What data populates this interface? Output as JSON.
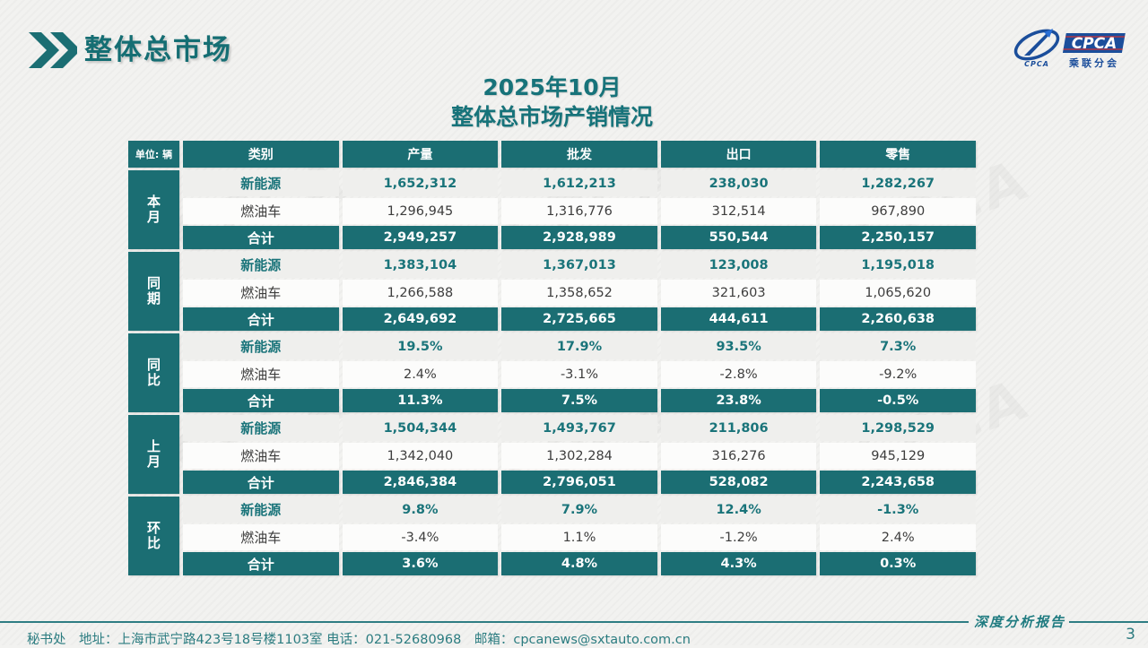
{
  "slide": {
    "section_title": "整体总市场",
    "title_line1": "2025年10月",
    "title_line2": "整体总市场产销情况"
  },
  "logo": {
    "main": "CPCA",
    "sub": "乘联分会",
    "oval_caption": "CPCA"
  },
  "watermark_text": "CPCA",
  "table": {
    "unit_label": "单位: 辆",
    "columns": [
      "类别",
      "产量",
      "批发",
      "出口",
      "零售"
    ],
    "groups": [
      {
        "label": "本月",
        "rows": [
          {
            "category": "新能源",
            "style": "nev",
            "values": [
              "1,652,312",
              "1,612,213",
              "238,030",
              "1,282,267"
            ]
          },
          {
            "category": "燃油车",
            "style": "fuel",
            "values": [
              "1,296,945",
              "1,316,776",
              "312,514",
              "967,890"
            ]
          },
          {
            "category": "合计",
            "style": "total",
            "values": [
              "2,949,257",
              "2,928,989",
              "550,544",
              "2,250,157"
            ]
          }
        ]
      },
      {
        "label": "同期",
        "rows": [
          {
            "category": "新能源",
            "style": "nev",
            "values": [
              "1,383,104",
              "1,367,013",
              "123,008",
              "1,195,018"
            ]
          },
          {
            "category": "燃油车",
            "style": "fuel",
            "values": [
              "1,266,588",
              "1,358,652",
              "321,603",
              "1,065,620"
            ]
          },
          {
            "category": "合计",
            "style": "total",
            "values": [
              "2,649,692",
              "2,725,665",
              "444,611",
              "2,260,638"
            ]
          }
        ]
      },
      {
        "label": "同比",
        "rows": [
          {
            "category": "新能源",
            "style": "nev",
            "values": [
              "19.5%",
              "17.9%",
              "93.5%",
              "7.3%"
            ]
          },
          {
            "category": "燃油车",
            "style": "fuel",
            "values": [
              "2.4%",
              "-3.1%",
              "-2.8%",
              "-9.2%"
            ]
          },
          {
            "category": "合计",
            "style": "total",
            "values": [
              "11.3%",
              "7.5%",
              "23.8%",
              "-0.5%"
            ]
          }
        ]
      },
      {
        "label": "上月",
        "rows": [
          {
            "category": "新能源",
            "style": "nev",
            "values": [
              "1,504,344",
              "1,493,767",
              "211,806",
              "1,298,529"
            ]
          },
          {
            "category": "燃油车",
            "style": "fuel",
            "values": [
              "1,342,040",
              "1,302,284",
              "316,276",
              "945,129"
            ]
          },
          {
            "category": "合计",
            "style": "total",
            "values": [
              "2,846,384",
              "2,796,051",
              "528,082",
              "2,243,658"
            ]
          }
        ]
      },
      {
        "label": "环比",
        "rows": [
          {
            "category": "新能源",
            "style": "nev",
            "values": [
              "9.8%",
              "7.9%",
              "12.4%",
              "-1.3%"
            ]
          },
          {
            "category": "燃油车",
            "style": "fuel",
            "values": [
              "-3.4%",
              "1.1%",
              "-1.2%",
              "2.4%"
            ]
          },
          {
            "category": "合计",
            "style": "total",
            "values": [
              "3.6%",
              "4.8%",
              "4.3%",
              "0.3%"
            ]
          }
        ]
      }
    ]
  },
  "footer": {
    "contact": "秘书处　地址：上海市武宁路423号18号楼1103室  电话：021-52680968　邮箱：cpcanews@sxtauto.com.cn",
    "report_label": "深度分析报告",
    "page_number": "3"
  },
  "colors": {
    "teal": "#1b6e73",
    "teal_text": "#17737a",
    "logo_blue": "#1b4e9b",
    "logo_red": "#cf3333"
  }
}
